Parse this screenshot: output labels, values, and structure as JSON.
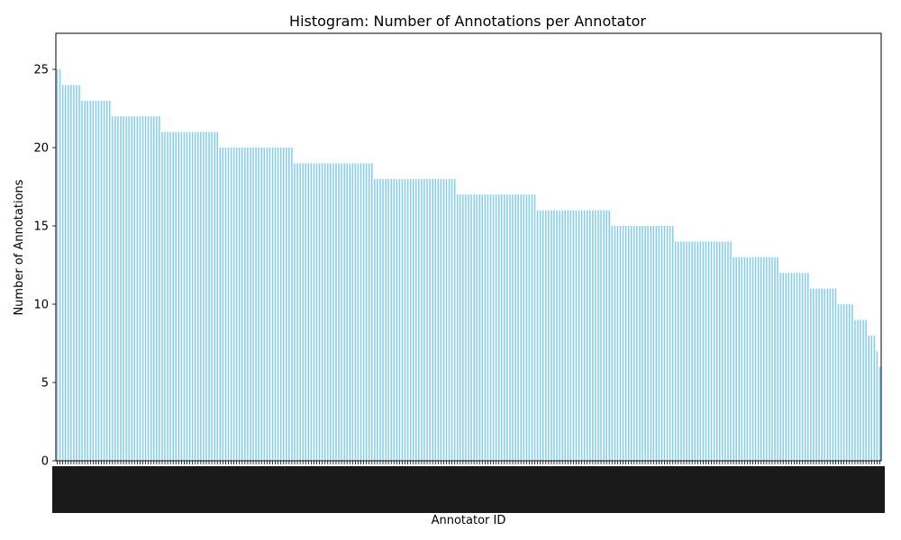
{
  "chart_data": {
    "type": "bar",
    "title": "Histogram: Number of Annotations per Annotator",
    "xlabel": "Annotator ID",
    "ylabel": "Number of Annotations",
    "ylim": [
      0,
      27.3
    ],
    "yticks": [
      0,
      5,
      10,
      15,
      20,
      25
    ],
    "grid": false,
    "legend": "none",
    "bar_color": "#87CEEB",
    "bar_edge_color": "#ffffff",
    "tick_label_color": "#000000",
    "x_tick_label_note": "tick labels illegible (overlapping annotator IDs)",
    "values_sorted_desc_groups": [
      {
        "value": 25,
        "count": 2
      },
      {
        "value": 24,
        "count": 7
      },
      {
        "value": 23,
        "count": 11
      },
      {
        "value": 22,
        "count": 18
      },
      {
        "value": 21,
        "count": 21
      },
      {
        "value": 20,
        "count": 27
      },
      {
        "value": 19,
        "count": 29
      },
      {
        "value": 18,
        "count": 30
      },
      {
        "value": 17,
        "count": 29
      },
      {
        "value": 16,
        "count": 27
      },
      {
        "value": 15,
        "count": 23
      },
      {
        "value": 14,
        "count": 21
      },
      {
        "value": 13,
        "count": 17
      },
      {
        "value": 12,
        "count": 11
      },
      {
        "value": 11,
        "count": 10
      },
      {
        "value": 10,
        "count": 6
      },
      {
        "value": 9,
        "count": 5
      },
      {
        "value": 8,
        "count": 3
      },
      {
        "value": 7,
        "count": 1
      },
      {
        "value": 6,
        "count": 1
      }
    ]
  }
}
